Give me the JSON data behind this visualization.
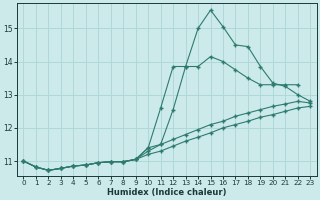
{
  "xlabel": "Humidex (Indice chaleur)",
  "background_color": "#cceaea",
  "grid_color": "#b0d8d8",
  "line_color": "#2e7b6e",
  "xlim": [
    -0.5,
    23.5
  ],
  "ylim": [
    10.55,
    15.75
  ],
  "xticks": [
    0,
    1,
    2,
    3,
    4,
    5,
    6,
    7,
    8,
    9,
    10,
    11,
    12,
    13,
    14,
    15,
    16,
    17,
    18,
    19,
    20,
    21,
    22,
    23
  ],
  "yticks": [
    11,
    12,
    13,
    14,
    15
  ],
  "lines": [
    {
      "x": [
        0,
        1,
        2,
        3,
        4,
        5,
        6,
        7,
        8,
        9,
        10,
        11,
        12,
        13,
        14,
        15,
        16,
        17,
        18,
        19,
        20,
        21,
        22,
        23
      ],
      "y": [
        11.0,
        10.82,
        10.72,
        10.78,
        10.85,
        10.88,
        10.95,
        10.98,
        10.98,
        11.05,
        11.4,
        12.6,
        13.85,
        13.85,
        15.0,
        15.55,
        15.05,
        14.5,
        14.45,
        13.85,
        13.35,
        13.25,
        13.0,
        12.8
      ]
    },
    {
      "x": [
        0,
        1,
        2,
        3,
        4,
        5,
        6,
        7,
        8,
        9,
        10,
        11,
        12,
        13,
        14,
        15,
        16,
        17,
        18,
        19,
        20,
        21,
        22
      ],
      "y": [
        11.0,
        10.82,
        10.72,
        10.78,
        10.85,
        10.88,
        10.95,
        10.98,
        10.98,
        11.05,
        11.4,
        11.5,
        12.55,
        13.85,
        13.85,
        14.15,
        14.0,
        13.75,
        13.5,
        13.3,
        13.3,
        13.3,
        13.3
      ]
    },
    {
      "x": [
        0,
        1,
        2,
        3,
        4,
        5,
        6,
        7,
        8,
        9,
        10,
        11,
        12,
        13,
        14,
        15,
        16,
        17,
        18,
        19,
        20,
        21,
        22,
        23
      ],
      "y": [
        11.0,
        10.82,
        10.72,
        10.78,
        10.85,
        10.88,
        10.95,
        10.98,
        10.98,
        11.05,
        11.3,
        11.5,
        11.65,
        11.8,
        11.95,
        12.1,
        12.2,
        12.35,
        12.45,
        12.55,
        12.65,
        12.72,
        12.8,
        12.75
      ]
    },
    {
      "x": [
        0,
        1,
        2,
        3,
        4,
        5,
        6,
        7,
        8,
        9,
        10,
        11,
        12,
        13,
        14,
        15,
        16,
        17,
        18,
        19,
        20,
        21,
        22,
        23
      ],
      "y": [
        11.0,
        10.82,
        10.72,
        10.78,
        10.85,
        10.88,
        10.95,
        10.98,
        10.98,
        11.05,
        11.2,
        11.3,
        11.45,
        11.6,
        11.72,
        11.85,
        12.0,
        12.1,
        12.2,
        12.32,
        12.4,
        12.5,
        12.6,
        12.65
      ]
    }
  ]
}
